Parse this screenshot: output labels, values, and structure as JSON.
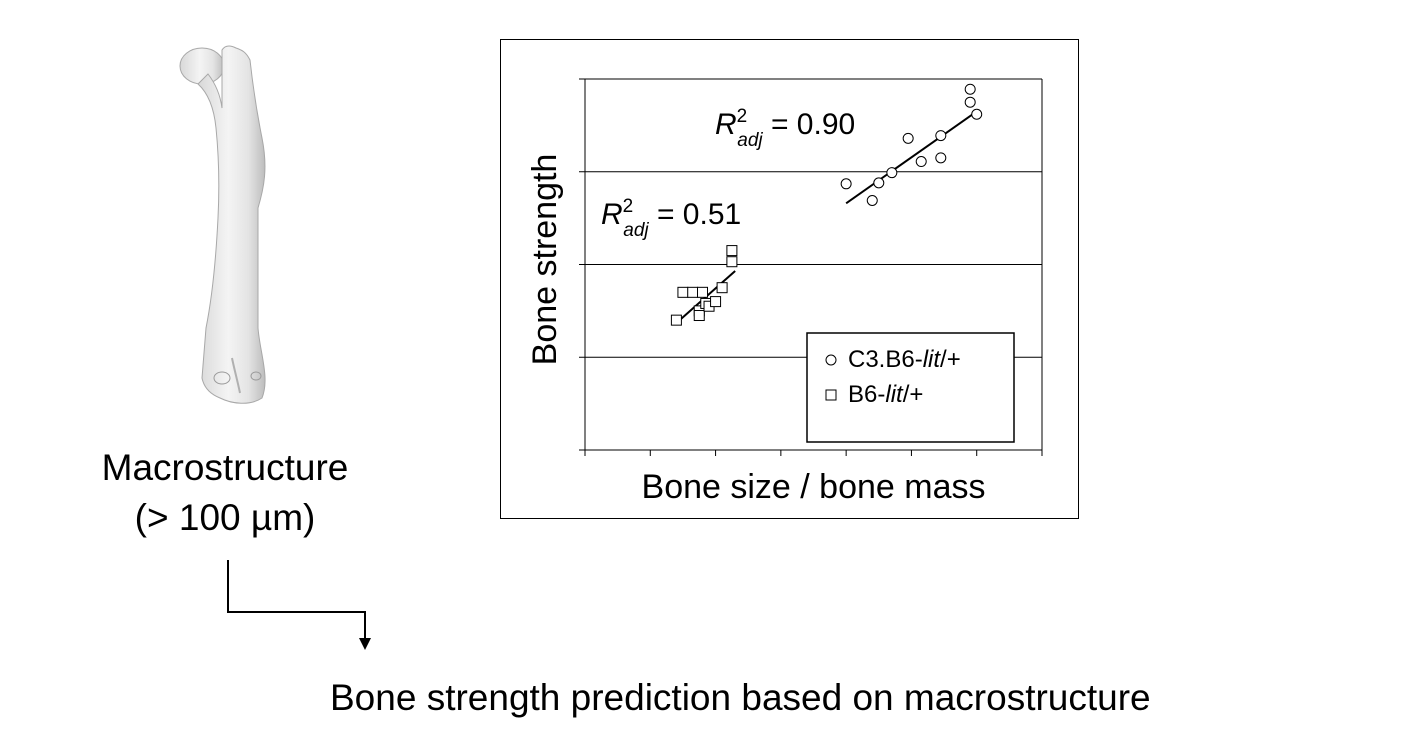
{
  "macro": {
    "title": "Macrostructure",
    "scale": "(> 100 µm)"
  },
  "bottom_caption": "Bone strength prediction based on macrostructure",
  "chart_data": {
    "type": "scatter",
    "xlabel": "Bone size / bone mass",
    "ylabel": "Bone strength",
    "xlim": [
      0,
      7
    ],
    "ylim": [
      0,
      4
    ],
    "x_ticks": [
      0,
      1,
      2,
      3,
      4,
      5,
      6,
      7
    ],
    "y_ticks": [
      0,
      1,
      2,
      3,
      4
    ],
    "tick_labels_shown": false,
    "grid": "horizontal",
    "legend_position": "bottom-right",
    "series": [
      {
        "name": "C3.B6-lit/+",
        "marker": "circle",
        "points": [
          [
            4.0,
            2.87
          ],
          [
            4.4,
            2.69
          ],
          [
            4.5,
            2.88
          ],
          [
            4.7,
            2.99
          ],
          [
            4.95,
            3.36
          ],
          [
            5.15,
            3.11
          ],
          [
            5.45,
            3.39
          ],
          [
            5.45,
            3.15
          ],
          [
            5.9,
            3.89
          ],
          [
            5.9,
            3.75
          ],
          [
            6.0,
            3.62
          ]
        ],
        "fit_line": [
          [
            4.0,
            2.66
          ],
          [
            6.0,
            3.65
          ]
        ],
        "r2_label": {
          "prefix": "R",
          "sup": "2",
          "sub": "adj",
          "text": " = 0.90"
        }
      },
      {
        "name": "B6-lit/+",
        "marker": "square",
        "points": [
          [
            1.4,
            1.4
          ],
          [
            1.5,
            1.7
          ],
          [
            1.65,
            1.7
          ],
          [
            1.75,
            1.5
          ],
          [
            1.75,
            1.45
          ],
          [
            1.8,
            1.7
          ],
          [
            1.85,
            1.58
          ],
          [
            1.9,
            1.55
          ],
          [
            2.0,
            1.6
          ],
          [
            2.1,
            1.75
          ],
          [
            2.25,
            2.03
          ],
          [
            2.25,
            2.15
          ]
        ],
        "fit_line": [
          [
            1.45,
            1.4
          ],
          [
            2.3,
            1.93
          ]
        ],
        "r2_label": {
          "prefix": "R",
          "sup": "2",
          "sub": "adj",
          "text": " = 0.51"
        }
      }
    ]
  }
}
